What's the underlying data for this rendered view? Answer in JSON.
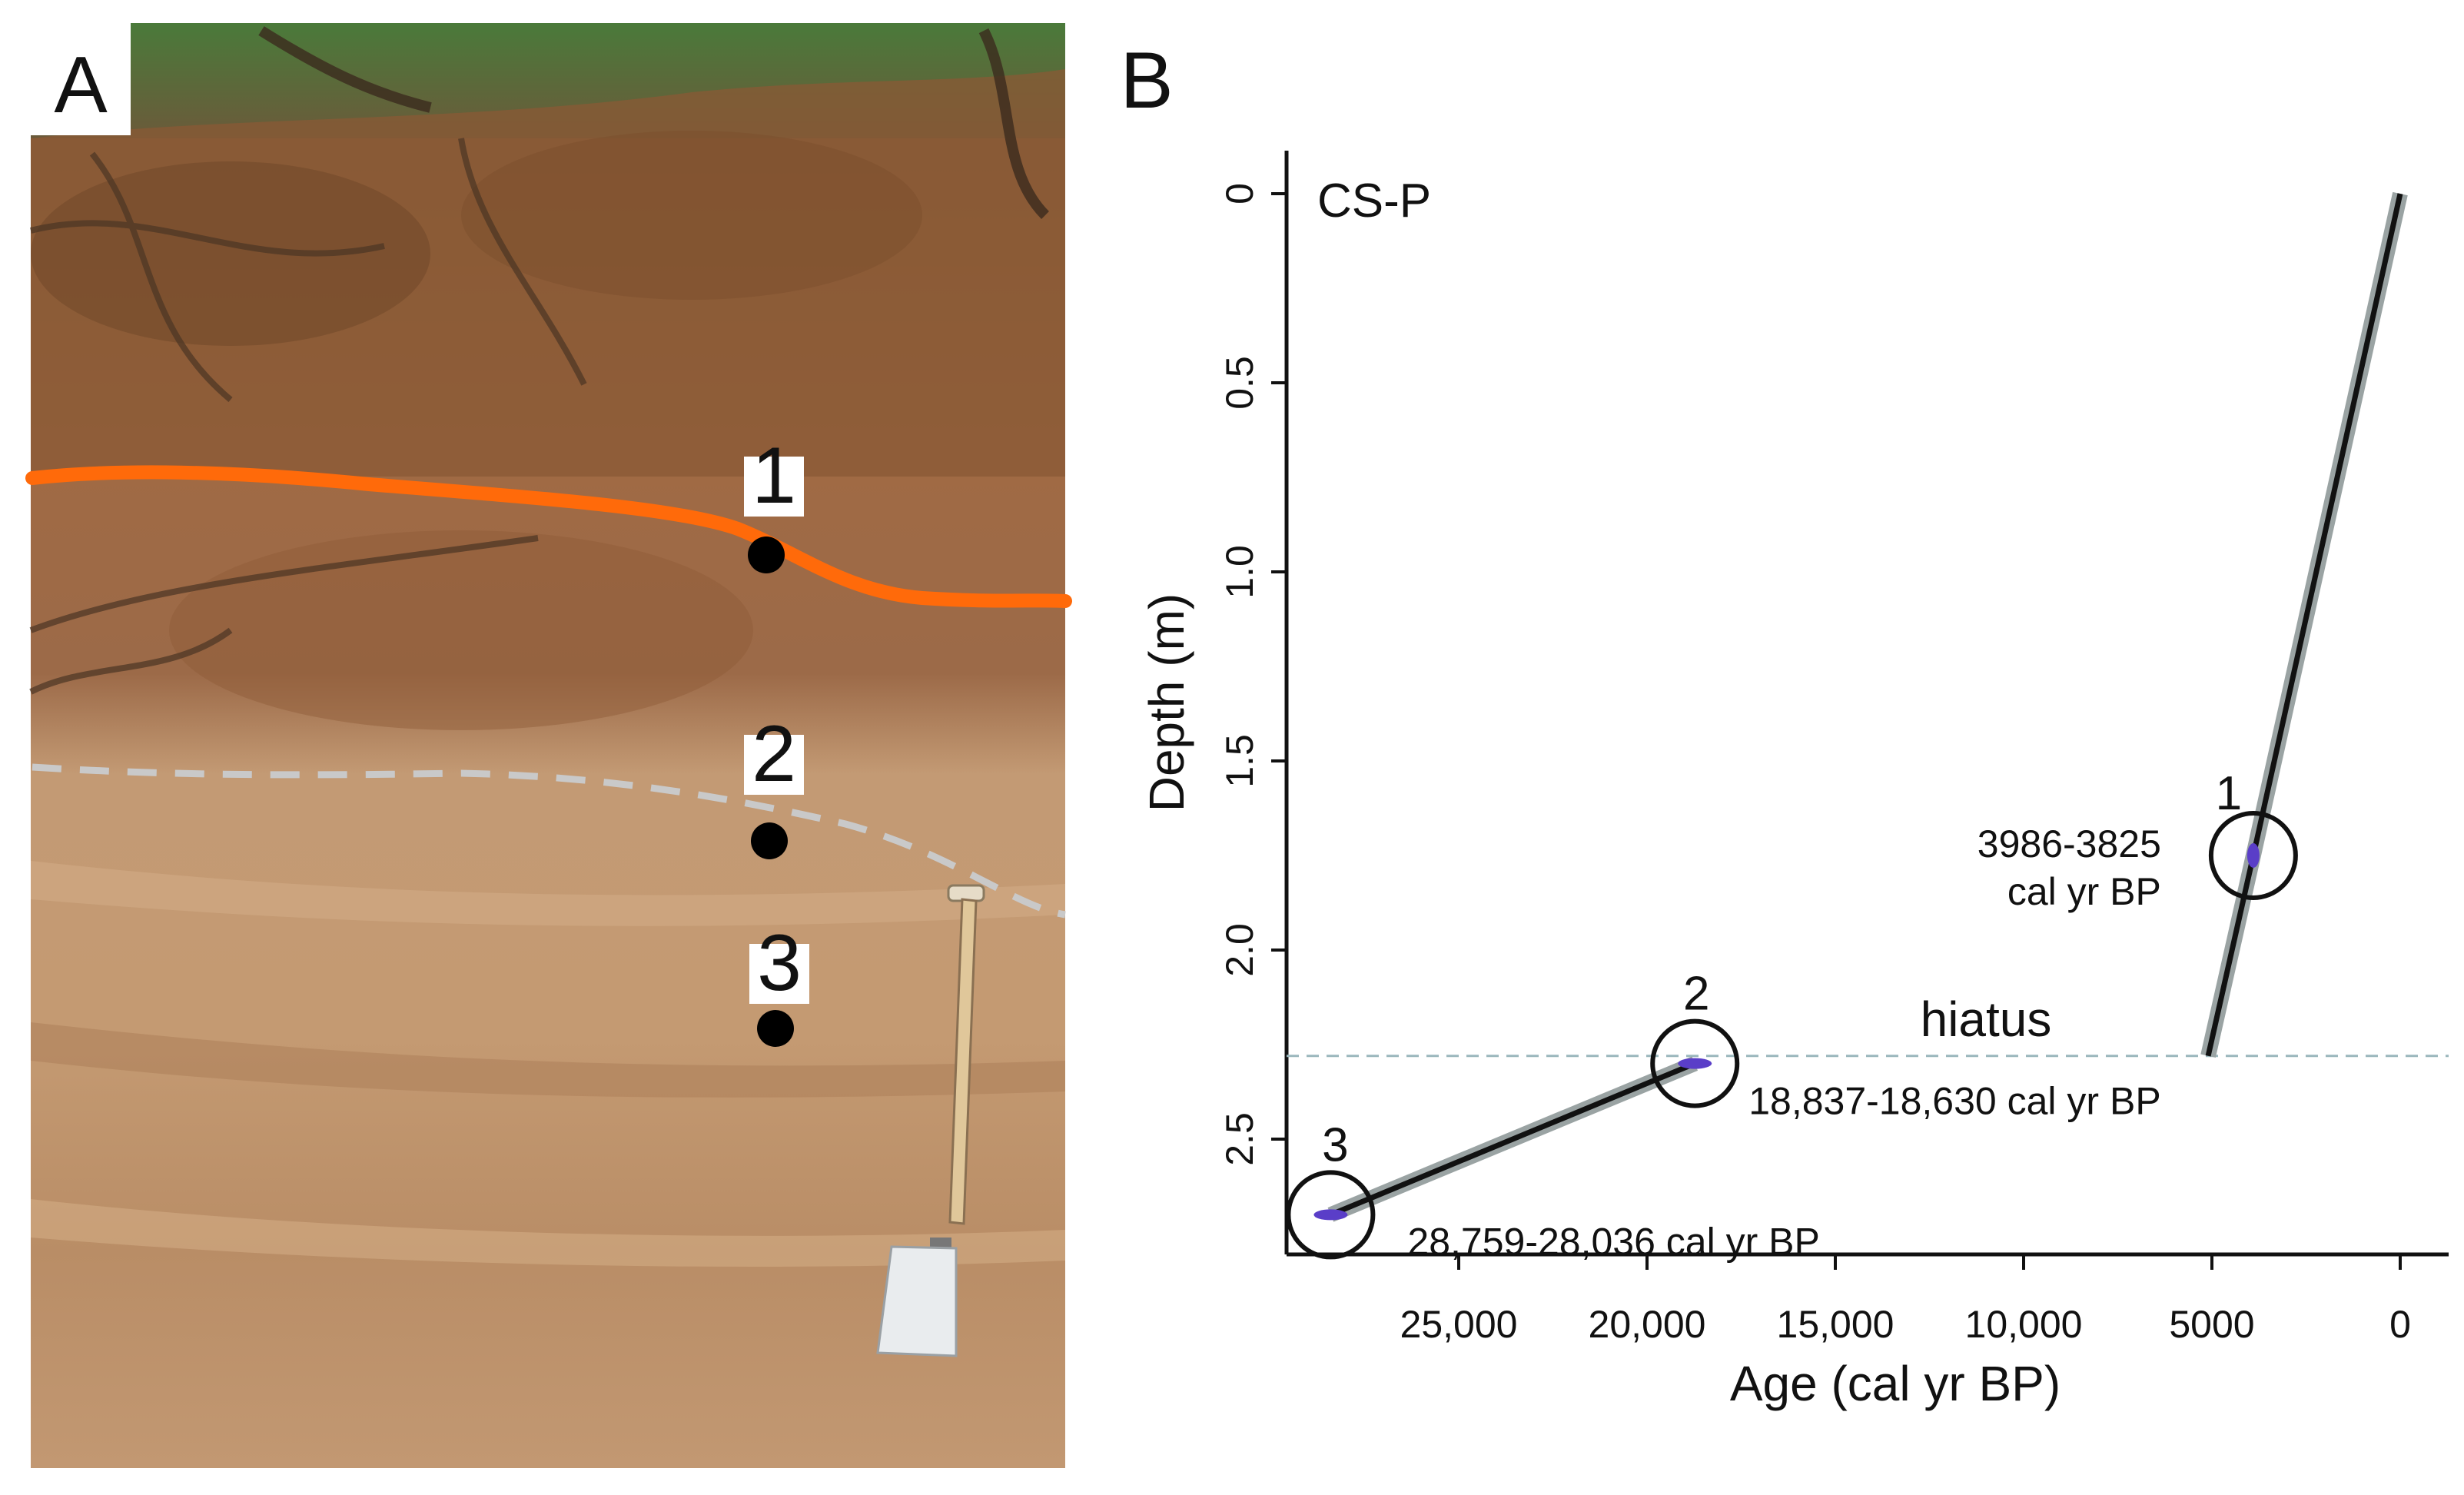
{
  "panel_a": {
    "label": "A",
    "photo_markers": [
      "1",
      "2",
      "3"
    ]
  },
  "panel_b": {
    "label": "B",
    "site_label": "CS-P",
    "hiatus_label": "hiatus"
  },
  "colors": {
    "orange_boundary": "#ff6a0a",
    "dashed_boundary": "#c9c9c9",
    "age_model_line": "#111111",
    "uncertainty_band": "#9aa3a3",
    "calibrated_dates": "#5a3ec8",
    "hiatus_line": "#9bb7bd"
  },
  "chart_data": {
    "type": "line",
    "title": "",
    "site": "CS-P",
    "xlabel": "Age (cal yr BP)",
    "ylabel": "Depth (m)",
    "x_axis_reversed": true,
    "xlim": [
      29000,
      -200
    ],
    "ylim": [
      0,
      2.8
    ],
    "x_ticks": [
      25000,
      20000,
      15000,
      10000,
      5000,
      0
    ],
    "x_tick_labels": [
      "25,000",
      "20,000",
      "15,000",
      "10,000",
      "5000",
      "0"
    ],
    "y_ticks": [
      0,
      0.5,
      1.0,
      1.5,
      2.0,
      2.5
    ],
    "y_tick_labels": [
      "0",
      "0.5",
      "1.0",
      "1.5",
      "2.0",
      "2.5"
    ],
    "series": [
      {
        "values": [
          {
            "x": 0,
            "y": 0
          },
          {
            "x": 3900,
            "y": 1.75
          },
          {
            "x": 5100,
            "y": 2.28
          }
        ]
      },
      {
        "values": [
          {
            "x": 18730,
            "y": 2.3
          },
          {
            "x": 28400,
            "y": 2.7
          }
        ]
      }
    ],
    "dates": [
      {
        "label": "1",
        "age_range": "3986-3825",
        "annotation_line1": "3986-3825",
        "annotation_line2": "cal yr BP",
        "x": 3900,
        "y": 1.75
      },
      {
        "label": "2",
        "age_range": "18,837-18,630",
        "annotation_line1": "18,837-18,630 cal yr BP",
        "x": 18730,
        "y": 2.3
      },
      {
        "label": "3",
        "age_range": "28,759-28,036",
        "annotation_line1": "28,759-28,036 cal yr BP",
        "x": 28400,
        "y": 2.7
      }
    ],
    "hiatus": {
      "y": 2.28,
      "label": "hiatus"
    },
    "legend": "none",
    "grid": false
  }
}
